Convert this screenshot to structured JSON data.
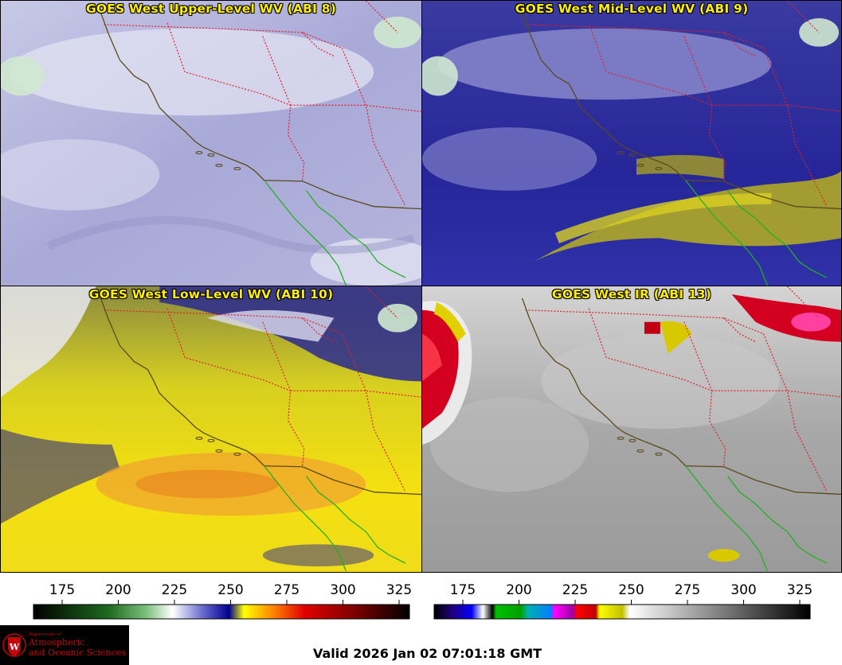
{
  "panels": [
    {
      "title": "GOES West Upper-Level WV (ABI 8)"
    },
    {
      "title": "GOES West Mid-Level WV (ABI 9)"
    },
    {
      "title": "GOES West Low-Level WV (ABI 10)"
    },
    {
      "title": "GOES West IR (ABI 13)"
    }
  ],
  "colorbars": {
    "wv": {
      "ticks": [
        "175",
        "200",
        "225",
        "250",
        "275",
        "300",
        "325"
      ]
    },
    "ir": {
      "ticks": [
        "175",
        "200",
        "225",
        "250",
        "275",
        "300",
        "325"
      ]
    }
  },
  "logo": {
    "dept": "Department of",
    "line1": "Atmospheric",
    "line2": "and Oceanic Sciences"
  },
  "valid_time": "Valid 2026 Jan 02 07:01:18 GMT",
  "colors": {
    "title": "#ffee00",
    "state_border": "#e0202a",
    "coastline_us": "#5a4a1e",
    "coastline_mx": "#22b022",
    "intl_border": "#5a4a1e"
  }
}
